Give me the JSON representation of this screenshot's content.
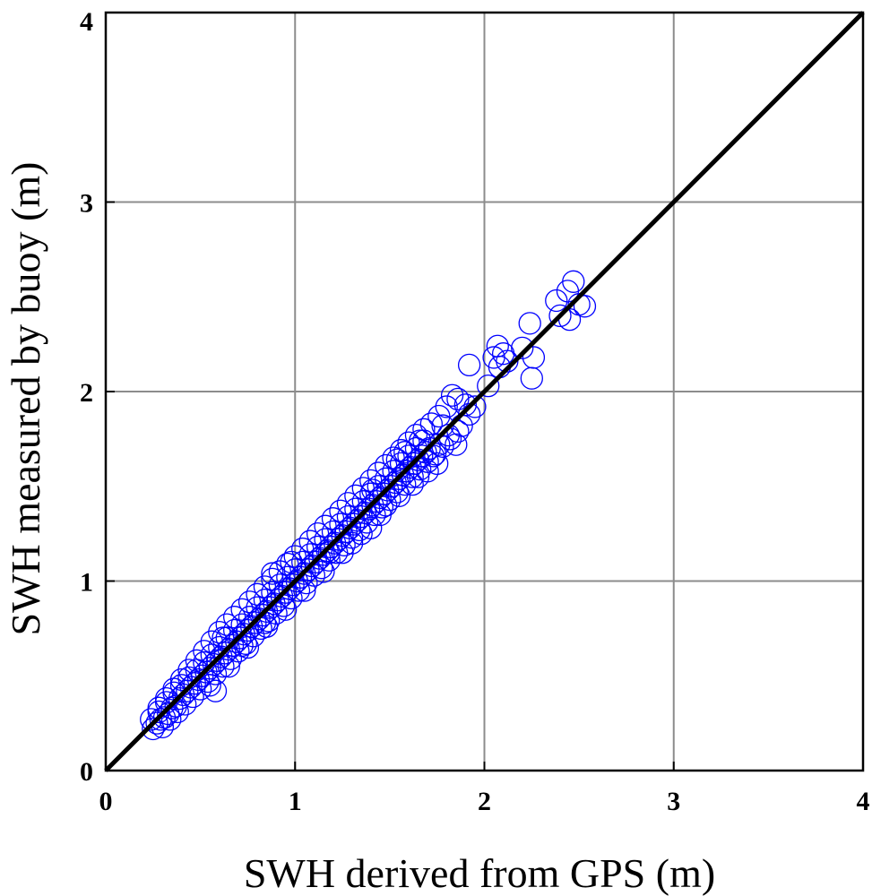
{
  "chart_data": {
    "type": "scatter",
    "xlabel": "SWH derived from GPS (m)",
    "ylabel": "SWH measured by buoy (m)",
    "xlim": [
      0,
      4
    ],
    "ylim": [
      0,
      4
    ],
    "x_ticks": [
      "0",
      "1",
      "2",
      "3",
      "4"
    ],
    "y_ticks": [
      "0",
      "1",
      "2",
      "3",
      "4"
    ],
    "grid": true,
    "marker": "open-circle",
    "marker_color": "#0000ff",
    "reference_line": {
      "type": "1:1",
      "from": [
        0,
        0
      ],
      "to": [
        4,
        4
      ],
      "color": "#000000"
    },
    "series": [
      {
        "points": [
          [
            0.25,
            0.22
          ],
          [
            0.27,
            0.25
          ],
          [
            0.29,
            0.27
          ],
          [
            0.31,
            0.28
          ],
          [
            0.28,
            0.31
          ],
          [
            0.33,
            0.3
          ],
          [
            0.35,
            0.33
          ],
          [
            0.32,
            0.36
          ],
          [
            0.37,
            0.34
          ],
          [
            0.39,
            0.38
          ],
          [
            0.36,
            0.41
          ],
          [
            0.41,
            0.4
          ],
          [
            0.43,
            0.42
          ],
          [
            0.4,
            0.45
          ],
          [
            0.45,
            0.44
          ],
          [
            0.47,
            0.46
          ],
          [
            0.44,
            0.49
          ],
          [
            0.49,
            0.48
          ],
          [
            0.51,
            0.5
          ],
          [
            0.48,
            0.53
          ],
          [
            0.53,
            0.52
          ],
          [
            0.55,
            0.54
          ],
          [
            0.52,
            0.57
          ],
          [
            0.57,
            0.56
          ],
          [
            0.59,
            0.58
          ],
          [
            0.56,
            0.61
          ],
          [
            0.61,
            0.6
          ],
          [
            0.63,
            0.62
          ],
          [
            0.6,
            0.65
          ],
          [
            0.65,
            0.64
          ],
          [
            0.67,
            0.66
          ],
          [
            0.64,
            0.7
          ],
          [
            0.69,
            0.68
          ],
          [
            0.71,
            0.7
          ],
          [
            0.68,
            0.74
          ],
          [
            0.73,
            0.72
          ],
          [
            0.75,
            0.74
          ],
          [
            0.72,
            0.77
          ],
          [
            0.77,
            0.76
          ],
          [
            0.79,
            0.78
          ],
          [
            0.76,
            0.81
          ],
          [
            0.81,
            0.8
          ],
          [
            0.83,
            0.82
          ],
          [
            0.8,
            0.86
          ],
          [
            0.85,
            0.84
          ],
          [
            0.87,
            0.86
          ],
          [
            0.84,
            0.9
          ],
          [
            0.89,
            0.88
          ],
          [
            0.91,
            0.9
          ],
          [
            0.88,
            0.94
          ],
          [
            0.93,
            0.92
          ],
          [
            0.95,
            0.94
          ],
          [
            0.92,
            0.98
          ],
          [
            0.97,
            0.96
          ],
          [
            0.99,
            0.98
          ],
          [
            0.96,
            1.02
          ],
          [
            1.01,
            1.0
          ],
          [
            1.03,
            1.02
          ],
          [
            1.0,
            1.06
          ],
          [
            1.05,
            1.04
          ],
          [
            1.07,
            1.06
          ],
          [
            1.04,
            1.1
          ],
          [
            1.09,
            1.08
          ],
          [
            1.11,
            1.1
          ],
          [
            1.08,
            1.14
          ],
          [
            1.13,
            1.12
          ],
          [
            1.15,
            1.14
          ],
          [
            1.12,
            1.18
          ],
          [
            1.17,
            1.16
          ],
          [
            1.19,
            1.18
          ],
          [
            1.16,
            1.22
          ],
          [
            1.21,
            1.2
          ],
          [
            1.23,
            1.22
          ],
          [
            1.2,
            1.26
          ],
          [
            1.25,
            1.24
          ],
          [
            1.27,
            1.26
          ],
          [
            1.24,
            1.3
          ],
          [
            1.29,
            1.28
          ],
          [
            1.31,
            1.3
          ],
          [
            1.28,
            1.34
          ],
          [
            1.33,
            1.32
          ],
          [
            1.35,
            1.34
          ],
          [
            1.32,
            1.38
          ],
          [
            1.37,
            1.36
          ],
          [
            1.39,
            1.38
          ],
          [
            1.36,
            1.42
          ],
          [
            1.41,
            1.4
          ],
          [
            1.43,
            1.42
          ],
          [
            1.4,
            1.46
          ],
          [
            1.45,
            1.44
          ],
          [
            1.47,
            1.46
          ],
          [
            1.44,
            1.5
          ],
          [
            1.49,
            1.48
          ],
          [
            1.51,
            1.5
          ],
          [
            1.48,
            1.54
          ],
          [
            1.53,
            1.52
          ],
          [
            1.55,
            1.54
          ],
          [
            1.52,
            1.58
          ],
          [
            1.57,
            1.56
          ],
          [
            1.59,
            1.58
          ],
          [
            1.56,
            1.62
          ],
          [
            1.61,
            1.6
          ],
          [
            1.63,
            1.62
          ],
          [
            1.6,
            1.66
          ],
          [
            1.65,
            1.64
          ],
          [
            1.67,
            1.66
          ],
          [
            1.64,
            1.7
          ],
          [
            1.69,
            1.68
          ],
          [
            1.71,
            1.7
          ],
          [
            1.68,
            1.74
          ],
          [
            0.3,
            0.23
          ],
          [
            0.34,
            0.27
          ],
          [
            0.38,
            0.31
          ],
          [
            0.42,
            0.35
          ],
          [
            0.46,
            0.39
          ],
          [
            0.5,
            0.43
          ],
          [
            0.54,
            0.47
          ],
          [
            0.58,
            0.51
          ],
          [
            0.62,
            0.55
          ],
          [
            0.66,
            0.59
          ],
          [
            0.7,
            0.63
          ],
          [
            0.74,
            0.67
          ],
          [
            0.78,
            0.71
          ],
          [
            0.82,
            0.75
          ],
          [
            0.86,
            0.79
          ],
          [
            0.9,
            0.83
          ],
          [
            0.94,
            0.87
          ],
          [
            0.98,
            0.91
          ],
          [
            1.02,
            0.95
          ],
          [
            1.06,
            0.99
          ],
          [
            1.1,
            1.03
          ],
          [
            1.14,
            1.07
          ],
          [
            1.18,
            1.11
          ],
          [
            1.22,
            1.15
          ],
          [
            1.26,
            1.19
          ],
          [
            1.3,
            1.23
          ],
          [
            1.34,
            1.27
          ],
          [
            1.38,
            1.31
          ],
          [
            1.42,
            1.35
          ],
          [
            1.46,
            1.39
          ],
          [
            1.5,
            1.43
          ],
          [
            1.54,
            1.47
          ],
          [
            1.58,
            1.51
          ],
          [
            1.62,
            1.55
          ],
          [
            1.66,
            1.59
          ],
          [
            1.7,
            1.63
          ],
          [
            1.74,
            1.67
          ],
          [
            1.78,
            1.71
          ],
          [
            1.82,
            1.75
          ],
          [
            1.86,
            1.79
          ],
          [
            0.24,
            0.27
          ],
          [
            0.28,
            0.33
          ],
          [
            0.32,
            0.38
          ],
          [
            0.36,
            0.43
          ],
          [
            0.4,
            0.48
          ],
          [
            0.44,
            0.53
          ],
          [
            0.48,
            0.58
          ],
          [
            0.52,
            0.63
          ],
          [
            0.56,
            0.68
          ],
          [
            0.6,
            0.73
          ],
          [
            0.64,
            0.77
          ],
          [
            0.68,
            0.81
          ],
          [
            0.72,
            0.85
          ],
          [
            0.76,
            0.89
          ],
          [
            0.8,
            0.93
          ],
          [
            0.84,
            0.97
          ],
          [
            0.88,
            1.01
          ],
          [
            0.92,
            1.05
          ],
          [
            0.96,
            1.09
          ],
          [
            1.0,
            1.13
          ],
          [
            1.04,
            1.17
          ],
          [
            1.08,
            1.21
          ],
          [
            1.12,
            1.25
          ],
          [
            1.16,
            1.29
          ],
          [
            1.2,
            1.33
          ],
          [
            1.24,
            1.37
          ],
          [
            1.28,
            1.41
          ],
          [
            1.32,
            1.45
          ],
          [
            1.36,
            1.49
          ],
          [
            1.4,
            1.53
          ],
          [
            1.44,
            1.57
          ],
          [
            1.48,
            1.61
          ],
          [
            1.52,
            1.65
          ],
          [
            1.56,
            1.69
          ],
          [
            1.6,
            1.73
          ],
          [
            1.64,
            1.77
          ],
          [
            1.68,
            1.8
          ],
          [
            1.72,
            1.83
          ],
          [
            1.76,
            1.87
          ],
          [
            1.8,
            1.92
          ],
          [
            0.55,
            0.45
          ],
          [
            0.65,
            0.55
          ],
          [
            0.75,
            0.65
          ],
          [
            0.85,
            0.76
          ],
          [
            0.95,
            0.85
          ],
          [
            1.05,
            0.95
          ],
          [
            1.15,
            1.05
          ],
          [
            1.25,
            1.15
          ],
          [
            1.35,
            1.25
          ],
          [
            1.45,
            1.35
          ],
          [
            1.55,
            1.45
          ],
          [
            1.65,
            1.55
          ],
          [
            1.75,
            1.62
          ],
          [
            1.85,
            1.72
          ],
          [
            1.88,
            1.82
          ],
          [
            1.9,
            1.93
          ],
          [
            1.92,
            1.88
          ],
          [
            1.83,
            1.98
          ],
          [
            1.86,
            1.96
          ],
          [
            1.95,
            1.92
          ],
          [
            1.41,
            1.48
          ],
          [
            1.54,
            1.64
          ],
          [
            1.66,
            1.74
          ],
          [
            1.73,
            1.66
          ],
          [
            1.78,
            1.82
          ],
          [
            1.81,
            1.77
          ],
          [
            1.58,
            1.68
          ],
          [
            1.62,
            1.51
          ],
          [
            1.7,
            1.58
          ],
          [
            1.76,
            1.72
          ],
          [
            0.84,
            0.78
          ],
          [
            1.18,
            1.15
          ],
          [
            1.3,
            1.2
          ],
          [
            1.4,
            1.28
          ],
          [
            0.98,
            1.1
          ],
          [
            0.88,
            1.04
          ],
          [
            0.72,
            0.66
          ],
          [
            0.62,
            0.7
          ],
          [
            0.58,
            0.42
          ],
          [
            1.48,
            1.4
          ],
          [
            1.92,
            2.14
          ],
          [
            2.02,
            2.03
          ],
          [
            2.05,
            2.18
          ],
          [
            2.07,
            2.24
          ],
          [
            2.1,
            2.2
          ],
          [
            2.12,
            2.16
          ],
          [
            2.08,
            2.13
          ],
          [
            2.2,
            2.23
          ],
          [
            2.26,
            2.18
          ],
          [
            2.25,
            2.07
          ],
          [
            2.24,
            2.36
          ],
          [
            2.38,
            2.48
          ],
          [
            2.4,
            2.4
          ],
          [
            2.44,
            2.53
          ],
          [
            2.47,
            2.58
          ],
          [
            2.5,
            2.46
          ],
          [
            2.45,
            2.38
          ],
          [
            2.53,
            2.45
          ]
        ]
      }
    ]
  }
}
